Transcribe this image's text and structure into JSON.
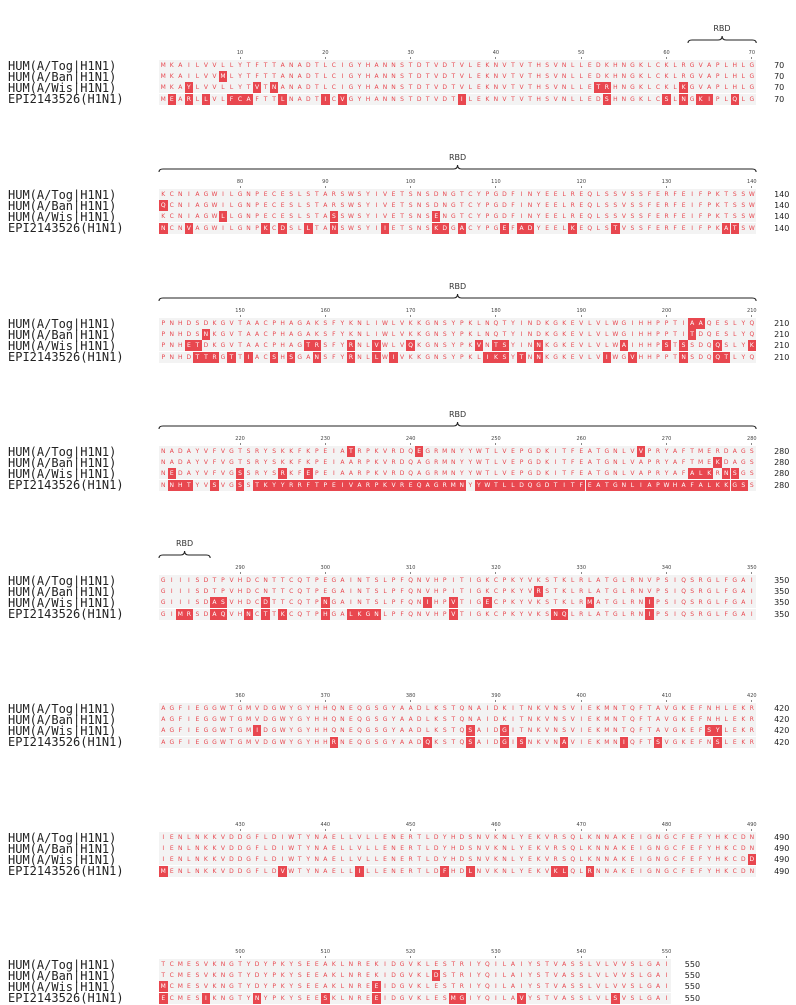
{
  "colors": {
    "match_bg": "#f3f3f3",
    "match_text": "#e8474f",
    "mismatch_bg": "#e8474f",
    "mismatch_text": "#ffffff",
    "brace": "#222222"
  },
  "region_label": "RBD",
  "sequence_names": [
    "HUM(A/Tog|H1N1)",
    "HUM(A/Ban|H1N1)",
    "HUM(A/Wis|H1N1)",
    "EPI2143526(H1N1)"
  ],
  "sequences": [
    "MKAILVVLLYTFTTANADTLCIGYHANNSTDTVDTVLEKNVTVTHSVNLLEDKHNGKLCKLRGVAPLHLGKCNIAGWILGNPECESLSTARSWSYIVETSNSDNGTCYPGDFINYEELREQLSSVSSFERFEIFPKTSSWPNHDSDKGVTAACPHAGAKSFYKNLIWLVKKGNSYPKLNQTYINDKGKEVLVLWGIHHPPTIAAQESLYQNADAYVFVGTSRYSKKFKPEIATRPKVRDQEGRMNYYWTLVEPGDKITFEATGNLVVPRYAFTMERDAGSGIIISDTPVHDCNTTCQTPEGAINTSLPFQNVHPITIGKCPKYVKSTKLRLATGLRNVPSIQSRGLFGAIAGFIEGGWTGMVDGWYGYHHQNEQGSGYAADLKSTQNAIDKITNKVNSVIEKMNTQFTAVGKEFNHLEKRIENLNKKVDDGFLDIWTYNAELLVLLENERTLDYHDSNVKNLYEKVRSQLKNNAKEIGNGCFEFYHKCDNTCMESVKNGTYDYPKYSEEAKLNREKIDGVKLESTRIYQILAIYSTVASSLVLVVSLGAI",
    "MKAILVVMLYTFTTANADTLCIGYHANNSTDTVDTVLEKNVTVTHSVNLLEDKHNGKLCKLRGVAPLHLGQCNIAGWILGNPECESLSTARSWSYIVETSNSDNGTCYPGDFINYEELREQLSSVSSFERFEIFPKTSSWPNHDSNKGVTAACPHAGAKSFYKNLIWLVKKGNSYPKLNQTYINDKGKEVLVLWGIHHPPTITDQESLYQNADAYVFVGTSRYSKKFKPEIAARPKVRDQAGRMNYYWTLVEPGDKITFEATGNLVAPRYAFTMEKDAGSGIIISDTPVHDCNTTCQTPEGAINTSLPFQNVHPITIGKCPKYVRSTKLRLATGLRNVPSIQSRGLFGAIAGFIEGGWTGMVDGWYGYHHQNEQGSGYAADLKSTQNAIDKITNKVNSVIEKMNTQFTAVGKEFNHLEKRIENLNKKVDDGFLDIWTYNAELLVLLENERTLDYHDSNVKNLYEKVRSQLKNNAKEIGNGCFEFYHKCDNTCMESVKNGTYDYPKYSEEAKLNREKIDGVKLDSTRIYQILAIYSTVASSLVLVVSLGAI",
    "MKAYLVVLLYTVTNANADTLCIGYHANNSTDTVDTVLEKNVTVTHSVNLLETRHNGKLCKLKGVAPLHLGKCNIAGWLLGNPECESLSTASSWSYIVETSNSENGTCYPGDFINYEELREQLSSVSSFERFEIFPKTSSWPNHETDKGVTAACPHAGTRSFYRNLVWLVQKGNSYPKVNTSYINNKGKEVLVLWAIHHPSTSSDQQSLYKNEDAYVFVGSSRYSRKFEPEIAARPKVRDQAGRMNYYWTLVEPGDKITFEATGNLVAPRYAFALKRNSGSGIIISDASVHDCDTTCQTPNGAINTSLPFQNIHPVTIGECPKYVKSTKLRMATGLRNIPSIQSRGLFGAIAGFIEGGWTGMIDGWYGYHHQNEQGSGYAADLKSTQSAIDGITNKVNSVIEKMNTQFTAVGKEFSYLEKRIENLNKKVDDGFLDIWTYNAELLVLLENERTLDYHDSNVKNLYEKVRSQLKNNAKEIGNGCFEFYHKCDDMCMESVKNGTYDYPKYSEEAKLNREEIDGVKLESTRIYQILAIYSTVASSLVLVVSLGAI",
    "MEARLLVLFCAFTTLNADTICVGYHANNSTDTVDTILEKNVTVTHSVNLLEDSHNGKLCSLNGKIPLQLGNCNVAGWILGNPKCDSLLTANSWSYIIETSNSKDGACYPGEFADYEELKEQLSTVSSFERFEIFPKATSWPNHDTTRGTTIACSHSGANSFYRNLLWIVKKGNSYPKLIKSYTNNKGKEVLVIWGVHHPPTNSDQQTLYQNNHTYVSVGSSTKYYRRFTPEIVARPKVREQAGRMNYYWTLLDQGDTITFEATGNLIAPWHAFALKKGSSGIMRSDAQVHNCTTKCQTPHGALKGNLPFQNVHPVTIGKCPKYVKSNQLRLATGLRNIPSIQSRGLFGAIAGFIEGGWTGMVDGWYGYHHRNEQGSGYAADQKSTQSAIDGISNKVNAVIEKMNIQFTSVGKEFNSLEKRMENLNKKVDDGFLDVWTYNAELLILLENERTLDFHDLNVKNLYEKVKLQLRNNAKEIGNGCFEFYHKCDNECMESIKNGTYNYPKYSEESKLNREEIDGVKLESMGIYQILAVYSTVASSLVLSVSLGAI"
  ],
  "blocks": [
    {
      "end": "70",
      "ticks": [
        "10",
        "20",
        "30",
        "40",
        "50",
        "60",
        "70"
      ]
    },
    {
      "end": "140",
      "ticks": [
        "80",
        "90",
        "100",
        "110",
        "120",
        "130",
        "140"
      ]
    },
    {
      "end": "210",
      "ticks": [
        "150",
        "160",
        "170",
        "180",
        "190",
        "200",
        "210"
      ]
    },
    {
      "end": "280",
      "ticks": [
        "220",
        "230",
        "240",
        "250",
        "260",
        "270",
        "280"
      ]
    },
    {
      "end": "350",
      "ticks": [
        "290",
        "300",
        "310",
        "320",
        "330",
        "340",
        "350"
      ]
    },
    {
      "end": "420",
      "ticks": [
        "360",
        "370",
        "380",
        "390",
        "400",
        "410",
        "420"
      ]
    },
    {
      "end": "490",
      "ticks": [
        "430",
        "440",
        "450",
        "460",
        "470",
        "480",
        "490"
      ]
    },
    {
      "end": "550",
      "ticks": [
        "500",
        "510",
        "520",
        "530",
        "540",
        "550"
      ]
    }
  ],
  "rbd_regions": [
    {
      "start": 63,
      "end": 70
    },
    {
      "start": 71,
      "end": 140
    },
    {
      "start": 141,
      "end": 210
    },
    {
      "start": 211,
      "end": 280
    },
    {
      "start": 281,
      "end": 286
    }
  ]
}
